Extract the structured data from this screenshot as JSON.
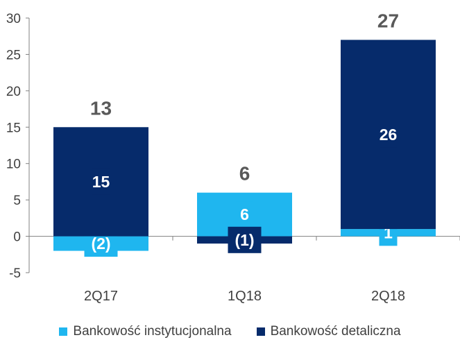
{
  "chart_data": {
    "type": "bar",
    "stacked": true,
    "categories": [
      "2Q17",
      "1Q18",
      "2Q18"
    ],
    "series": [
      {
        "name": "Bankowość instytucjonalna",
        "values": [
          -2,
          6,
          1
        ],
        "labels": [
          "(2)",
          "6",
          "1"
        ],
        "color": "#1fb6ef"
      },
      {
        "name": "Bankowość detaliczna",
        "values": [
          15,
          -1,
          26
        ],
        "labels": [
          "15",
          "(1)",
          "26"
        ],
        "color": "#062b6b"
      }
    ],
    "totals": [
      "13",
      "6",
      "27"
    ],
    "y_ticks": [
      "30",
      "25",
      "20",
      "15",
      "10",
      "5",
      "0",
      "-5"
    ],
    "ylim": [
      -5,
      30
    ],
    "grid": false,
    "legend_position": "bottom"
  }
}
